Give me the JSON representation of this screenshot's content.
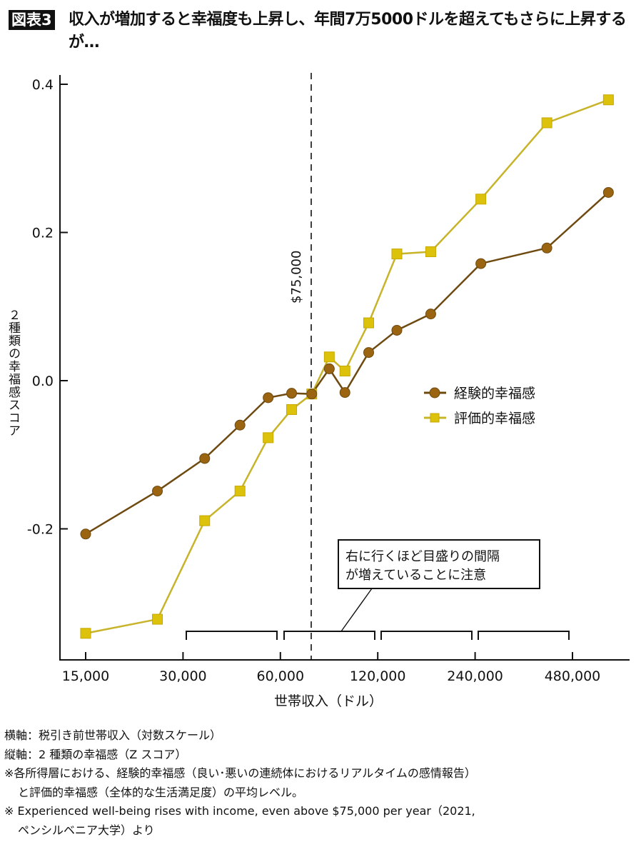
{
  "header": {
    "badge": "図表3",
    "title": "収入が増加すると幸福度も上昇し、年間7万5000ドルを超えてもさらに上昇するが…"
  },
  "chart_data": {
    "type": "line",
    "title": "収入が増加すると幸福度も上昇し、年間7万5000ドルを超えてもさらに上昇するが…",
    "xlabel": "世帯収入（ドル）",
    "ylabel": "２種類の幸福感スコア",
    "x_scale": "log2",
    "x_ticks": [
      15000,
      30000,
      60000,
      120000,
      240000,
      480000
    ],
    "x_tick_labels": [
      "15,000",
      "30,000",
      "60,000",
      "120,000",
      "240,000",
      "480,000"
    ],
    "y_ticks": [
      0.4,
      0.2,
      0.0,
      -0.2
    ],
    "y_tick_labels": [
      "0.4",
      "0.2",
      "0.0",
      "-0.2"
    ],
    "ylim": [
      -0.37,
      0.41
    ],
    "grid": false,
    "legend_position": "center-right",
    "reference_line": {
      "x": 75000,
      "label": "$75,000",
      "style": "dashed"
    },
    "annotation": "右に行くほど目盛りの間隔が増えていることに注意",
    "x": [
      15000,
      25000,
      35000,
      45000,
      55000,
      65000,
      75000,
      85000,
      95000,
      112500,
      137500,
      175000,
      250000,
      400000,
      620000
    ],
    "series": [
      {
        "name": "経験的幸福感",
        "marker": "circle",
        "color": "#9a6410",
        "line_color": "#6e4a10",
        "values": [
          -0.207,
          -0.149,
          -0.105,
          -0.06,
          -0.023,
          -0.017,
          -0.018,
          0.016,
          -0.016,
          0.038,
          0.068,
          0.09,
          0.158,
          0.179,
          0.254
        ]
      },
      {
        "name": "評価的幸福感",
        "marker": "square",
        "color": "#dcc20a",
        "line_color": "#c7b42a",
        "values": [
          -0.341,
          -0.322,
          -0.189,
          -0.149,
          -0.077,
          -0.039,
          -0.018,
          0.032,
          0.013,
          0.078,
          0.171,
          0.174,
          0.245,
          0.348,
          0.379
        ]
      }
    ]
  },
  "notes": {
    "line1": "横軸：税引き前世帯収入（対数スケール）",
    "line2": "縦軸：2 種類の幸福感（Z スコア）",
    "line3a": "※各所得層における、経験的幸福感（良い･悪いの連続体におけるリアルタイムの感情報告）",
    "line3b": "と評価的幸福感（全体的な生活満足度）の平均レベル。",
    "line4a": "※ Experienced well-being rises with income, even above $75,000 per year（2021,",
    "line4b": "ペンシルベニア大学）より"
  }
}
